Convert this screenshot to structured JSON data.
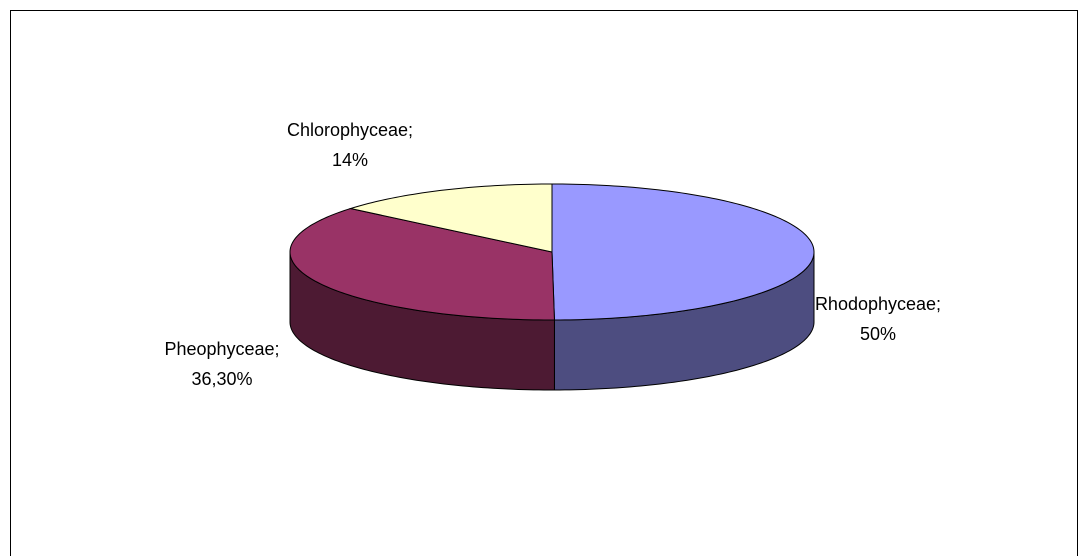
{
  "chart_data": {
    "type": "pie3d",
    "categories": [
      "Rhodophyceae;",
      "Pheophyceae;",
      "Chlorophyceae;"
    ],
    "values": [
      50,
      36.3,
      14
    ],
    "value_labels": [
      "50%",
      "36,30%",
      "14%"
    ],
    "colors": [
      "#9999ff",
      "#993366",
      "#ffffcc"
    ],
    "side_colors": [
      "#4d4d80",
      "#4d1a33",
      "#808066"
    ]
  }
}
